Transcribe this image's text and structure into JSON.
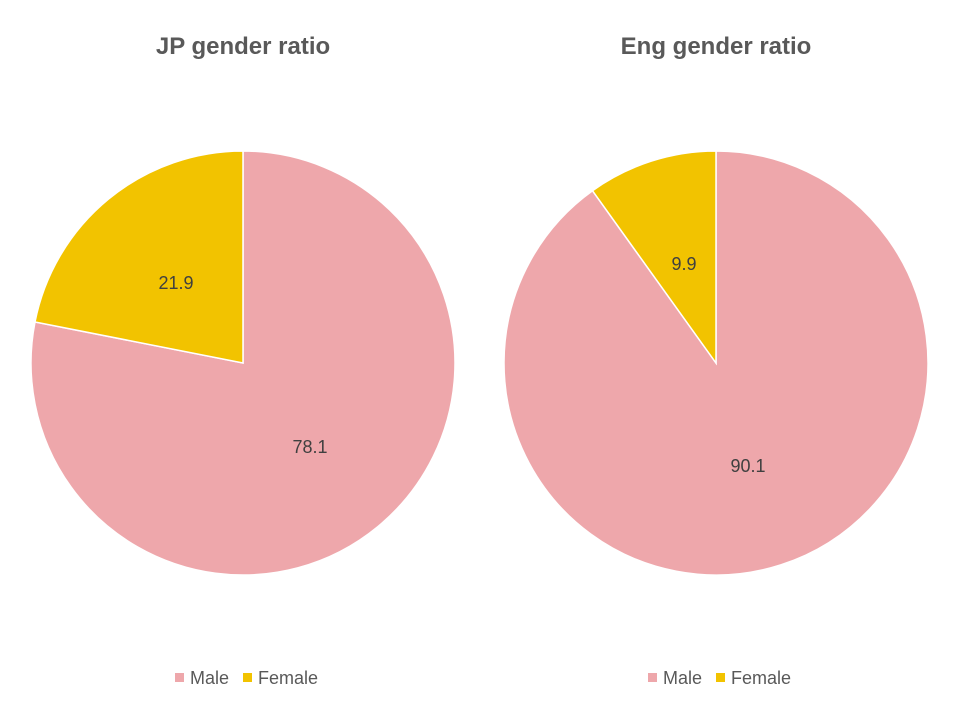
{
  "chart_data": [
    {
      "type": "pie",
      "title": "JP gender ratio",
      "categories": [
        "Male",
        "Female"
      ],
      "values": [
        78.1,
        21.9
      ],
      "colors": [
        "#EEA7AB",
        "#F2C300"
      ],
      "legend": {
        "position": "bottom",
        "items": [
          {
            "label": "Male",
            "color": "#EEA7AB"
          },
          {
            "label": "Female",
            "color": "#F2C300"
          }
        ]
      }
    },
    {
      "type": "pie",
      "title": "Eng gender ratio",
      "categories": [
        "Male",
        "Female"
      ],
      "values": [
        90.1,
        9.9
      ],
      "colors": [
        "#EEA7AB",
        "#F2C300"
      ],
      "legend": {
        "position": "bottom",
        "items": [
          {
            "label": "Male",
            "color": "#EEA7AB"
          },
          {
            "label": "Female",
            "color": "#F2C300"
          }
        ]
      }
    }
  ]
}
